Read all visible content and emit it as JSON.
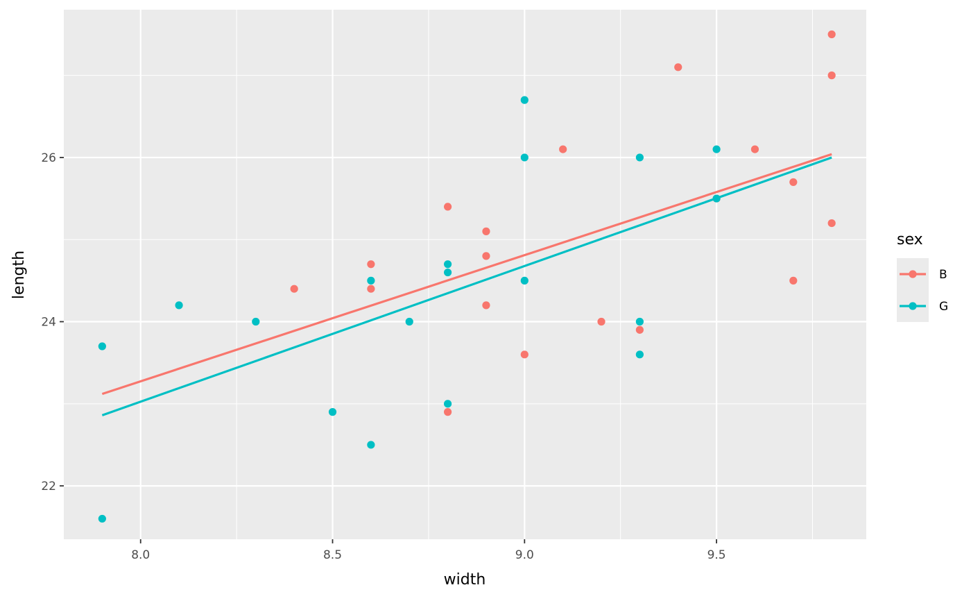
{
  "chart_data": {
    "type": "scatter",
    "xlabel": "width",
    "ylabel": "length",
    "xlim": [
      7.8,
      9.89
    ],
    "ylim": [
      21.35,
      27.8
    ],
    "x_ticks": [
      8.0,
      8.5,
      9.0,
      9.5
    ],
    "x_tick_labels": [
      "8.0",
      "8.5",
      "9.0",
      "9.5"
    ],
    "y_ticks": [
      22,
      24,
      26
    ],
    "y_tick_labels": [
      "22",
      "24",
      "26"
    ],
    "grid": true,
    "legend": {
      "title": "sex",
      "position": "right"
    },
    "series": [
      {
        "name": "B",
        "color": "#F8766D",
        "points": [
          [
            9.8,
            27.5
          ],
          [
            9.8,
            27.0
          ],
          [
            9.4,
            27.1
          ],
          [
            9.1,
            26.1
          ],
          [
            9.6,
            26.1
          ],
          [
            9.7,
            25.7
          ],
          [
            9.5,
            25.5
          ],
          [
            9.8,
            25.2
          ],
          [
            8.8,
            25.4
          ],
          [
            8.9,
            25.1
          ],
          [
            8.9,
            24.8
          ],
          [
            8.6,
            24.7
          ],
          [
            8.4,
            24.4
          ],
          [
            8.6,
            24.4
          ],
          [
            8.9,
            24.2
          ],
          [
            9.7,
            24.5
          ],
          [
            9.2,
            24.0
          ],
          [
            9.3,
            23.9
          ],
          [
            9.0,
            23.6
          ],
          [
            8.8,
            22.9
          ]
        ],
        "fit": [
          [
            7.9,
            23.12
          ],
          [
            9.8,
            26.04
          ]
        ]
      },
      {
        "name": "G",
        "color": "#00BFC4",
        "points": [
          [
            9.0,
            26.7
          ],
          [
            9.0,
            26.0
          ],
          [
            9.3,
            26.0
          ],
          [
            9.5,
            26.1
          ],
          [
            9.5,
            25.5
          ],
          [
            8.8,
            24.7
          ],
          [
            8.8,
            24.6
          ],
          [
            8.6,
            24.5
          ],
          [
            9.0,
            24.5
          ],
          [
            8.1,
            24.2
          ],
          [
            8.3,
            24.0
          ],
          [
            8.7,
            24.0
          ],
          [
            9.3,
            24.0
          ],
          [
            7.9,
            23.7
          ],
          [
            9.3,
            23.6
          ],
          [
            8.8,
            23.0
          ],
          [
            8.5,
            22.9
          ],
          [
            8.6,
            22.5
          ],
          [
            7.9,
            21.6
          ]
        ],
        "fit": [
          [
            7.9,
            22.86
          ],
          [
            9.8,
            26.0
          ]
        ]
      }
    ]
  }
}
